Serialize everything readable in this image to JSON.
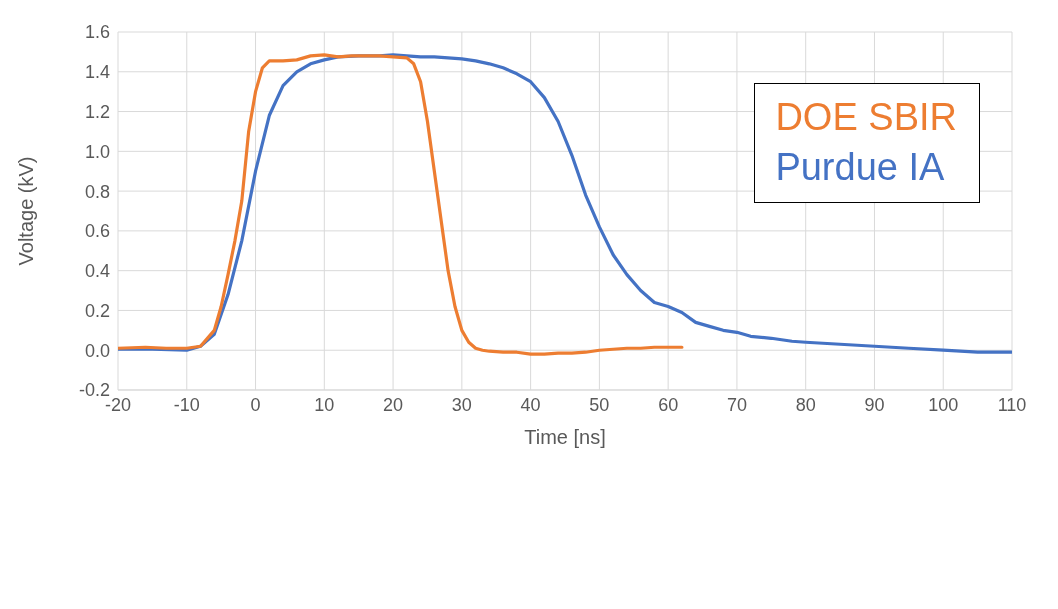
{
  "chart_data": {
    "type": "line",
    "xlabel": "Time [ns]",
    "ylabel": "Voltage (kV)",
    "xlim": [
      -20,
      110
    ],
    "xticks": [
      -20,
      -10,
      0,
      10,
      20,
      30,
      40,
      50,
      60,
      70,
      80,
      90,
      100,
      110
    ],
    "ylim": [
      -0.2,
      1.6
    ],
    "yticks": [
      -0.2,
      {
        "value": 0,
        "label": "0.0"
      },
      0.2,
      0.4,
      0.6,
      0.8,
      {
        "value": 1,
        "label": "1.0"
      },
      1.2,
      1.4,
      1.6
    ],
    "grid": true,
    "legend": "top right",
    "marker": "none",
    "line_style": "solid",
    "series": [
      {
        "name": "DOE SBIR",
        "color": "#ed7d31",
        "x": [
          -20,
          -16,
          -13,
          -10,
          -8,
          -6,
          -5,
          -4,
          -3,
          -2,
          -1,
          0,
          1,
          2,
          3,
          4,
          6,
          8,
          10,
          12,
          14,
          16,
          18,
          20,
          22,
          23,
          24,
          25,
          26,
          27,
          28,
          29,
          30,
          31,
          32,
          33,
          34,
          36,
          38,
          40,
          42,
          44,
          46,
          48,
          50,
          52,
          54,
          56,
          58,
          60,
          62
        ],
        "values": [
          0.01,
          0.015,
          0.01,
          0.01,
          0.02,
          0.1,
          0.22,
          0.38,
          0.55,
          0.75,
          1.1,
          1.3,
          1.42,
          1.455,
          1.455,
          1.455,
          1.46,
          1.48,
          1.485,
          1.475,
          1.48,
          1.48,
          1.48,
          1.475,
          1.47,
          1.44,
          1.35,
          1.15,
          0.9,
          0.65,
          0.4,
          0.22,
          0.1,
          0.04,
          0.01,
          0,
          -0.005,
          -0.01,
          -0.01,
          -0.02,
          -0.02,
          -0.015,
          -0.015,
          -0.01,
          0,
          0.005,
          0.01,
          0.01,
          0.015,
          0.015,
          0.015
        ]
      },
      {
        "name": "Purdue IA",
        "color": "#4472c4",
        "x": [
          -20,
          -15,
          -10,
          -8,
          -6,
          -4,
          -2,
          0,
          2,
          4,
          6,
          8,
          10,
          12,
          15,
          18,
          20,
          22,
          24,
          26,
          28,
          30,
          32,
          34,
          36,
          38,
          40,
          42,
          44,
          46,
          48,
          50,
          52,
          54,
          56,
          58,
          60,
          62,
          64,
          66,
          68,
          70,
          72,
          75,
          78,
          80,
          85,
          90,
          95,
          100,
          105,
          110
        ],
        "values": [
          0.005,
          0.005,
          0,
          0.02,
          0.08,
          0.28,
          0.55,
          0.9,
          1.18,
          1.33,
          1.4,
          1.44,
          1.46,
          1.475,
          1.48,
          1.48,
          1.485,
          1.48,
          1.475,
          1.475,
          1.47,
          1.465,
          1.455,
          1.44,
          1.42,
          1.39,
          1.35,
          1.27,
          1.15,
          0.98,
          0.78,
          0.62,
          0.48,
          0.38,
          0.3,
          0.24,
          0.22,
          0.19,
          0.14,
          0.12,
          0.1,
          0.09,
          0.07,
          0.06,
          0.045,
          0.04,
          0.03,
          0.02,
          0.01,
          0,
          -0.01,
          -0.01
        ]
      }
    ]
  }
}
